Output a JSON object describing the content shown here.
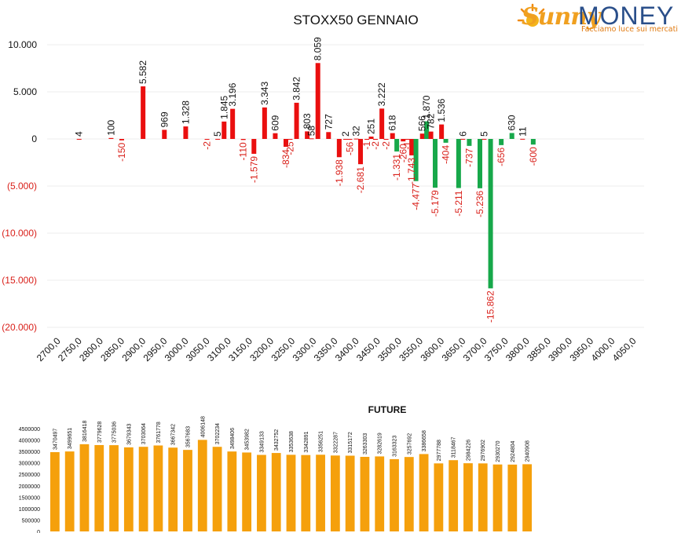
{
  "logo": {
    "brand_word_1": "Sunny",
    "brand_word_2": "MONEY",
    "tagline": "Facciamo luce sui mercati",
    "icon": "sun-icon"
  },
  "colors": {
    "positive": "#ea0f0f",
    "negative": "#17a84a",
    "neg_label": "#d9201a",
    "future_bar": "#f5a00c"
  },
  "chart_data": [
    {
      "type": "bar",
      "title": "STOXX50 GENNAIO",
      "x": [
        "2700,0",
        "2750,0",
        "2800,0",
        "2850,0",
        "2900,0",
        "2950,0",
        "3000,0",
        "3050,0",
        "3100,0",
        "3150,0",
        "3200,0",
        "3250,0",
        "3300,0",
        "3350,0",
        "3400,0",
        "3450,0",
        "3500,0",
        "3550,0",
        "3600,0",
        "3650,0",
        "3700,0",
        "3750,0",
        "3800,0",
        "3850,0",
        "3900,0",
        "3950,0",
        "4000,0",
        "4050,0"
      ],
      "ylim": [
        -20000,
        10000
      ],
      "yticks": [
        10000,
        5000,
        0,
        -5000,
        -10000,
        -15000,
        -20000
      ],
      "ytick_labels": [
        "10.000",
        "5.000",
        "0",
        "(5.000)",
        "(10.000)",
        "(15.000)",
        "(20.000)"
      ],
      "grid": true,
      "bars": [
        {
          "x": 2750,
          "value": 4,
          "label": "4",
          "color": "red"
        },
        {
          "x": 2825,
          "value": 100,
          "label": "100",
          "color": "red"
        },
        {
          "x": 2850,
          "value": -150,
          "label": "-150",
          "color": "red"
        },
        {
          "x": 2900,
          "value": 5582,
          "label": "5.582",
          "color": "red"
        },
        {
          "x": 2950,
          "value": 969,
          "label": "969",
          "color": "red"
        },
        {
          "x": 3000,
          "value": 1328,
          "label": "1.328",
          "color": "red"
        },
        {
          "x": 3050,
          "value": -2,
          "label": "-2",
          "color": "red"
        },
        {
          "x": 3075,
          "value": 5,
          "label": "5",
          "color": "red"
        },
        {
          "x": 3090,
          "value": 1845,
          "label": "1.845",
          "color": "red"
        },
        {
          "x": 3110,
          "value": 3196,
          "label": "3.196",
          "color": "red"
        },
        {
          "x": 3135,
          "value": -110,
          "label": "-110",
          "color": "red"
        },
        {
          "x": 3160,
          "value": -1579,
          "label": "-1.579",
          "color": "red"
        },
        {
          "x": 3185,
          "value": 3343,
          "label": "3.343",
          "color": "red"
        },
        {
          "x": 3210,
          "value": 609,
          "label": "609",
          "color": "red"
        },
        {
          "x": 3235,
          "value": -834,
          "label": "-834",
          "color": "red"
        },
        {
          "x": 3245,
          "value": -25,
          "label": "-25",
          "color": "red"
        },
        {
          "x": 3260,
          "value": 3842,
          "label": "3.842",
          "color": "red"
        },
        {
          "x": 3285,
          "value": 803,
          "label": "803",
          "color": "red"
        },
        {
          "x": 3295,
          "value": 58,
          "label": "58",
          "color": "red"
        },
        {
          "x": 3310,
          "value": 8059,
          "label": "8.059",
          "color": "red"
        },
        {
          "x": 3335,
          "value": 727,
          "label": "727",
          "color": "red"
        },
        {
          "x": 3360,
          "value": -1938,
          "label": "-1.938",
          "color": "red"
        },
        {
          "x": 3375,
          "value": 2,
          "label": "2",
          "color": "red"
        },
        {
          "x": 3385,
          "value": -56,
          "label": "-56",
          "color": "red"
        },
        {
          "x": 3400,
          "value": 32,
          "label": "32",
          "color": "red"
        },
        {
          "x": 3410,
          "value": -2681,
          "label": "-2.681",
          "color": "red"
        },
        {
          "x": 3425,
          "value": -1,
          "label": "-1",
          "color": "red"
        },
        {
          "x": 3435,
          "value": 251,
          "label": "251",
          "color": "red"
        },
        {
          "x": 3445,
          "value": -2,
          "label": "-2",
          "color": "red"
        },
        {
          "x": 3460,
          "value": 3222,
          "label": "3.222",
          "color": "red"
        },
        {
          "x": 3470,
          "value": -2,
          "label": "-2",
          "color": "red"
        },
        {
          "x": 3485,
          "value": 618,
          "label": "618",
          "color": "red"
        },
        {
          "x": 3495,
          "value": -1331,
          "label": "-1.331",
          "color": "green"
        },
        {
          "x": 3510,
          "value": -260,
          "label": "-260",
          "color": "red"
        },
        {
          "x": 3520,
          "value": -1,
          "label": "-1",
          "color": "red"
        },
        {
          "x": 3530,
          "value": -1743,
          "label": "-1.743",
          "color": "red"
        },
        {
          "x": 3540,
          "value": -4477,
          "label": "-4.477",
          "color": "green"
        },
        {
          "x": 3555,
          "value": 566,
          "label": "566",
          "color": "red"
        },
        {
          "x": 3565,
          "value": 1870,
          "label": "1.870",
          "color": "green"
        },
        {
          "x": 3575,
          "value": 782,
          "label": "782",
          "color": "red"
        },
        {
          "x": 3585,
          "value": -5179,
          "label": "-5.179",
          "color": "green"
        },
        {
          "x": 3600,
          "value": 1536,
          "label": "1.536",
          "color": "red"
        },
        {
          "x": 3610,
          "value": -404,
          "label": "-404",
          "color": "green"
        },
        {
          "x": 3640,
          "value": -5211,
          "label": "-5.211",
          "color": "green"
        },
        {
          "x": 3650,
          "value": 6,
          "label": "6",
          "color": "red"
        },
        {
          "x": 3665,
          "value": -737,
          "label": "-737",
          "color": "green"
        },
        {
          "x": 3690,
          "value": -5236,
          "label": "-5.236",
          "color": "green"
        },
        {
          "x": 3700,
          "value": 5,
          "label": "5",
          "color": "red"
        },
        {
          "x": 3715,
          "value": -15862,
          "label": "-15.862",
          "color": "green"
        },
        {
          "x": 3740,
          "value": -656,
          "label": "-656",
          "color": "green"
        },
        {
          "x": 3765,
          "value": 630,
          "label": "630",
          "color": "green"
        },
        {
          "x": 3790,
          "value": 11,
          "label": "11",
          "color": "red"
        },
        {
          "x": 3815,
          "value": -600,
          "label": "-600",
          "color": "green"
        }
      ]
    },
    {
      "type": "bar",
      "title": "FUTURE",
      "ylim": [
        0,
        4500000
      ],
      "yticks": [
        0,
        500000,
        1000000,
        1500000,
        2000000,
        2500000,
        3000000,
        3500000,
        4000000,
        4500000
      ],
      "ytick_labels": [
        "0",
        "500000",
        "1000000",
        "1500000",
        "2000000",
        "2500000",
        "3000000",
        "3500000",
        "4000000",
        "4500000"
      ],
      "values": [
        3470497,
        3499651,
        3816418,
        3779628,
        3775036,
        3679343,
        3703064,
        3761778,
        3667342,
        3567683,
        4006148,
        3702234,
        3498406,
        3453982,
        3349133,
        3432752,
        3353638,
        3342891,
        3356251,
        3322287,
        3315172,
        3263303,
        3282619,
        3163323,
        3257692,
        3386658,
        2977788,
        3118467,
        2984226,
        2976902,
        2930270,
        2924804,
        2940908
      ],
      "value_labels": [
        "3470497",
        "3499651",
        "3816418",
        "3779628",
        "3775036",
        "3679343",
        "3703064",
        "3761778",
        "3667342",
        "3567683",
        "4006148",
        "3702234",
        "3498406",
        "3453982",
        "3349133",
        "3432752",
        "3353638",
        "3342891",
        "3356251",
        "3322287",
        "3315172",
        "3263303",
        "3282619",
        "3163323",
        "3257692",
        "3386658",
        "2977788",
        "3118467",
        "2984226",
        "2976902",
        "2930270",
        "2924804",
        "2940908"
      ]
    }
  ]
}
